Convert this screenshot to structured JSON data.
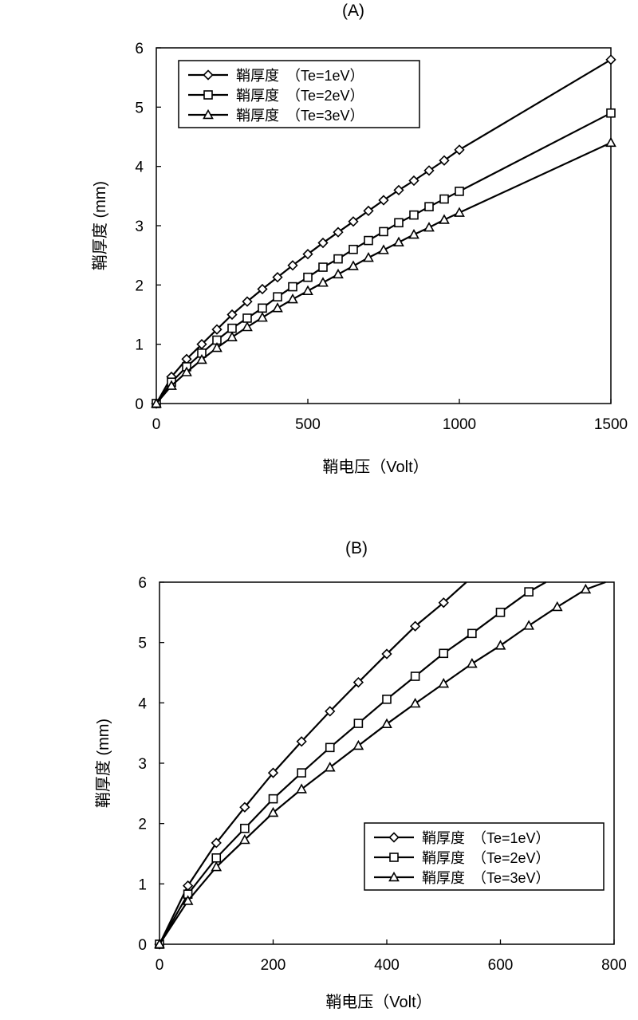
{
  "chart_data": [
    {
      "type": "line",
      "panel_label": "(A)",
      "xlabel": "鞘电压（Volt）",
      "ylabel": "鞘厚度 (mm)",
      "xlim": [
        0,
        1500
      ],
      "ylim": [
        0,
        6
      ],
      "xticks": [
        0,
        500,
        1000,
        1500
      ],
      "yticks": [
        0,
        1,
        2,
        3,
        4,
        5,
        6
      ],
      "grid": false,
      "legend_position": "top-left",
      "series": [
        {
          "name": "鞘厚度　（Te=1eV）",
          "marker": "diamond",
          "x": [
            0,
            50,
            100,
            150,
            200,
            250,
            300,
            350,
            400,
            450,
            500,
            550,
            600,
            650,
            700,
            750,
            800,
            850,
            900,
            950,
            1000,
            1500
          ],
          "y": [
            0,
            0.45,
            0.75,
            1.0,
            1.25,
            1.5,
            1.72,
            1.93,
            2.13,
            2.33,
            2.52,
            2.71,
            2.89,
            3.07,
            3.25,
            3.43,
            3.6,
            3.76,
            3.93,
            4.1,
            4.28,
            5.8
          ]
        },
        {
          "name": "鞘厚度　（Te=2eV）",
          "marker": "square",
          "x": [
            0,
            50,
            100,
            150,
            200,
            250,
            300,
            350,
            400,
            450,
            500,
            550,
            600,
            650,
            700,
            750,
            800,
            850,
            900,
            950,
            1000,
            1500
          ],
          "y": [
            0,
            0.36,
            0.62,
            0.85,
            1.07,
            1.27,
            1.44,
            1.61,
            1.8,
            1.97,
            2.13,
            2.3,
            2.44,
            2.6,
            2.75,
            2.9,
            3.05,
            3.18,
            3.32,
            3.45,
            3.58,
            4.9
          ]
        },
        {
          "name": "鞘厚度　（Te=3eV）",
          "marker": "triangle",
          "x": [
            0,
            50,
            100,
            150,
            200,
            250,
            300,
            350,
            400,
            450,
            500,
            550,
            600,
            650,
            700,
            750,
            800,
            850,
            900,
            950,
            1000,
            1500
          ],
          "y": [
            0,
            0.3,
            0.53,
            0.74,
            0.94,
            1.12,
            1.29,
            1.45,
            1.61,
            1.76,
            1.9,
            2.04,
            2.18,
            2.32,
            2.46,
            2.59,
            2.72,
            2.85,
            2.97,
            3.1,
            3.22,
            4.4
          ]
        }
      ]
    },
    {
      "type": "line",
      "panel_label": "(B)",
      "xlabel": "鞘电压（Volt）",
      "ylabel": "鞘厚度 (mm)",
      "xlim": [
        0,
        800
      ],
      "ylim": [
        0,
        6
      ],
      "xticks": [
        0,
        200,
        400,
        600,
        800
      ],
      "yticks": [
        0,
        1,
        2,
        3,
        4,
        5,
        6
      ],
      "grid": false,
      "legend_position": "bottom-right",
      "series": [
        {
          "name": "鞘厚度　（Te=1eV）",
          "marker": "diamond",
          "x": [
            0,
            50,
            100,
            150,
            200,
            250,
            300,
            350,
            400,
            450,
            500
          ],
          "y": [
            0,
            0.97,
            1.68,
            2.27,
            2.84,
            3.36,
            3.86,
            4.34,
            4.81,
            5.27,
            5.66
          ],
          "line_end": [
            540,
            6.0
          ]
        },
        {
          "name": "鞘厚度　（Te=2eV）",
          "marker": "square",
          "x": [
            0,
            50,
            100,
            150,
            200,
            250,
            300,
            350,
            400,
            450,
            500,
            550,
            600,
            650
          ],
          "y": [
            0,
            0.83,
            1.43,
            1.92,
            2.41,
            2.84,
            3.26,
            3.66,
            4.06,
            4.44,
            4.82,
            5.15,
            5.5,
            5.84
          ],
          "line_end": [
            680,
            6.0
          ]
        },
        {
          "name": "鞘厚度　（Te=3eV）",
          "marker": "triangle",
          "x": [
            0,
            50,
            100,
            150,
            200,
            250,
            300,
            350,
            400,
            450,
            500,
            550,
            600,
            650,
            700,
            750
          ],
          "y": [
            0,
            0.72,
            1.28,
            1.73,
            2.18,
            2.57,
            2.93,
            3.29,
            3.65,
            3.99,
            4.32,
            4.65,
            4.95,
            5.28,
            5.59,
            5.88
          ],
          "line_end": [
            785,
            6.0
          ]
        }
      ]
    }
  ]
}
